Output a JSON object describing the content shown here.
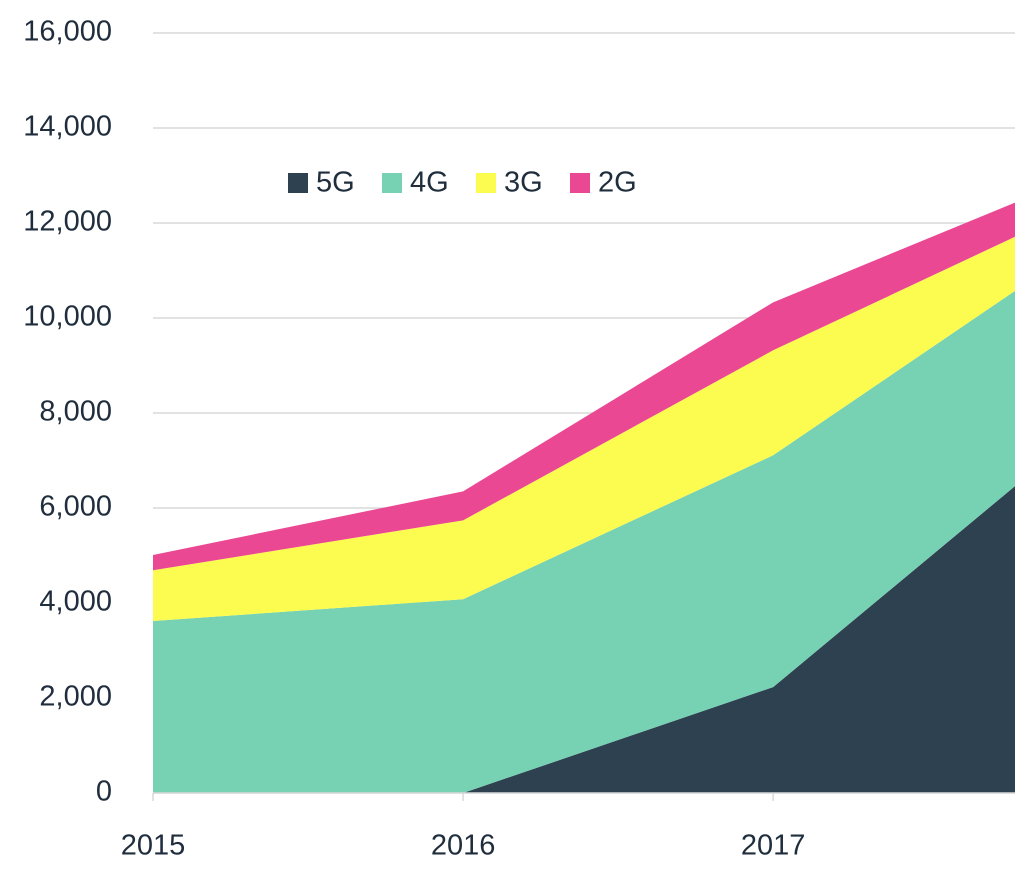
{
  "chart_data": {
    "type": "stacked_area",
    "x": [
      2015,
      2016,
      2017,
      2017.78
    ],
    "series": [
      {
        "name": "5G",
        "color": "#2e4150",
        "values": [
          0,
          0,
          2230,
          6460
        ]
      },
      {
        "name": "4G",
        "color": "#77d1b3",
        "values": [
          3620,
          4080,
          4880,
          4110
        ]
      },
      {
        "name": "3G",
        "color": "#fcfc50",
        "values": [
          1070,
          1660,
          2210,
          1140
        ]
      },
      {
        "name": "2G",
        "color": "#ea4893",
        "values": [
          320,
          610,
          1010,
          720
        ]
      }
    ],
    "xlim": [
      2015,
      2017.78
    ],
    "xticks": [
      2015,
      2016,
      2017
    ],
    "ylim": [
      0,
      16000
    ],
    "yticks": [
      0,
      {
        "value": 2000,
        "label": "2,000"
      },
      {
        "value": 4000,
        "label": "4,000"
      },
      {
        "value": 6000,
        "label": "6,000"
      },
      {
        "value": 8000,
        "label": "8,000"
      },
      {
        "value": 10000,
        "label": "10,000"
      },
      {
        "value": 12000,
        "label": "12,000"
      },
      {
        "value": 14000,
        "label": "14,000"
      },
      {
        "value": 16000,
        "label": "16,000"
      }
    ],
    "grid": true,
    "legend": "top"
  }
}
